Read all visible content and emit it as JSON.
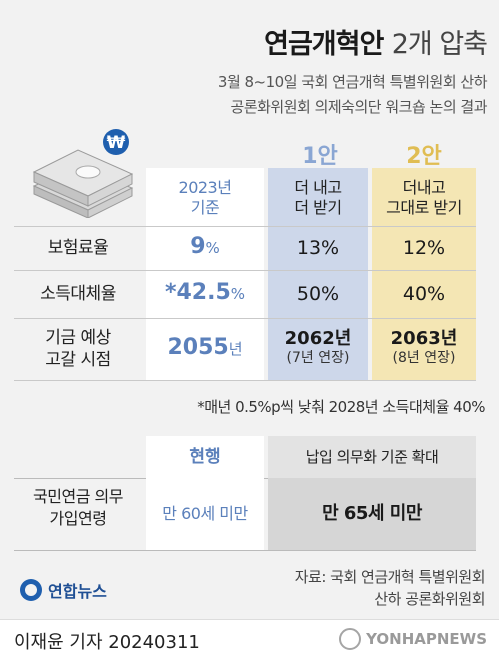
{
  "title": {
    "bold": "연금개혁안",
    "thin": "2개 압축"
  },
  "subtitle": [
    "3월 8~10일 국회 연금개혁 특별위원회 산하",
    "공론화위원회 의제숙의단 워크숍 논의 결과"
  ],
  "money_icon": {
    "name": "money-bundle-icon",
    "symbol": "₩"
  },
  "colors": {
    "accent_blue": "#5b80bb",
    "plan1": "#cdd7ea",
    "plan2": "#f4e6b4",
    "gold": "#e0bd53"
  },
  "table1": {
    "plan_labels": [
      "1안",
      "2안"
    ],
    "headers": {
      "base": [
        "2023년",
        "기준"
      ],
      "plan1": [
        "더 내고",
        "더 받기"
      ],
      "plan2": [
        "더내고",
        "그대로 받기"
      ]
    },
    "rows": [
      {
        "label": [
          "보험료율"
        ],
        "base": "9",
        "base_unit": "%",
        "plan1": "13%",
        "plan2": "12%"
      },
      {
        "label": [
          "소득대체율"
        ],
        "base": "*42.5",
        "base_unit": "%",
        "plan1": "50%",
        "plan2": "40%"
      },
      {
        "label": [
          "기금 예상",
          "고갈 시점"
        ],
        "base": "2055",
        "base_unit": "년",
        "plan1": "2062년",
        "plan1_sub": "(7년 연장)",
        "plan2": "2063년",
        "plan2_sub": "(8년 연장)"
      }
    ]
  },
  "footnote": "*매년 0.5%p씩 낮춰 2028년 소득대체율 40%",
  "table2": {
    "headers": [
      "현행",
      "납입 의무화 기준 확대"
    ],
    "row_label": [
      "국민연금 의무",
      "가입연령"
    ],
    "current": "만 60세 미만",
    "proposed": "만 65세 미만"
  },
  "source": [
    "자료: 국회 연금개혁 특별위원회",
    "산하 공론화위원회"
  ],
  "logo_text": "연합뉴스",
  "reporter": "이재윤 기자  20240311",
  "watermark": "YONHAPNEWS"
}
